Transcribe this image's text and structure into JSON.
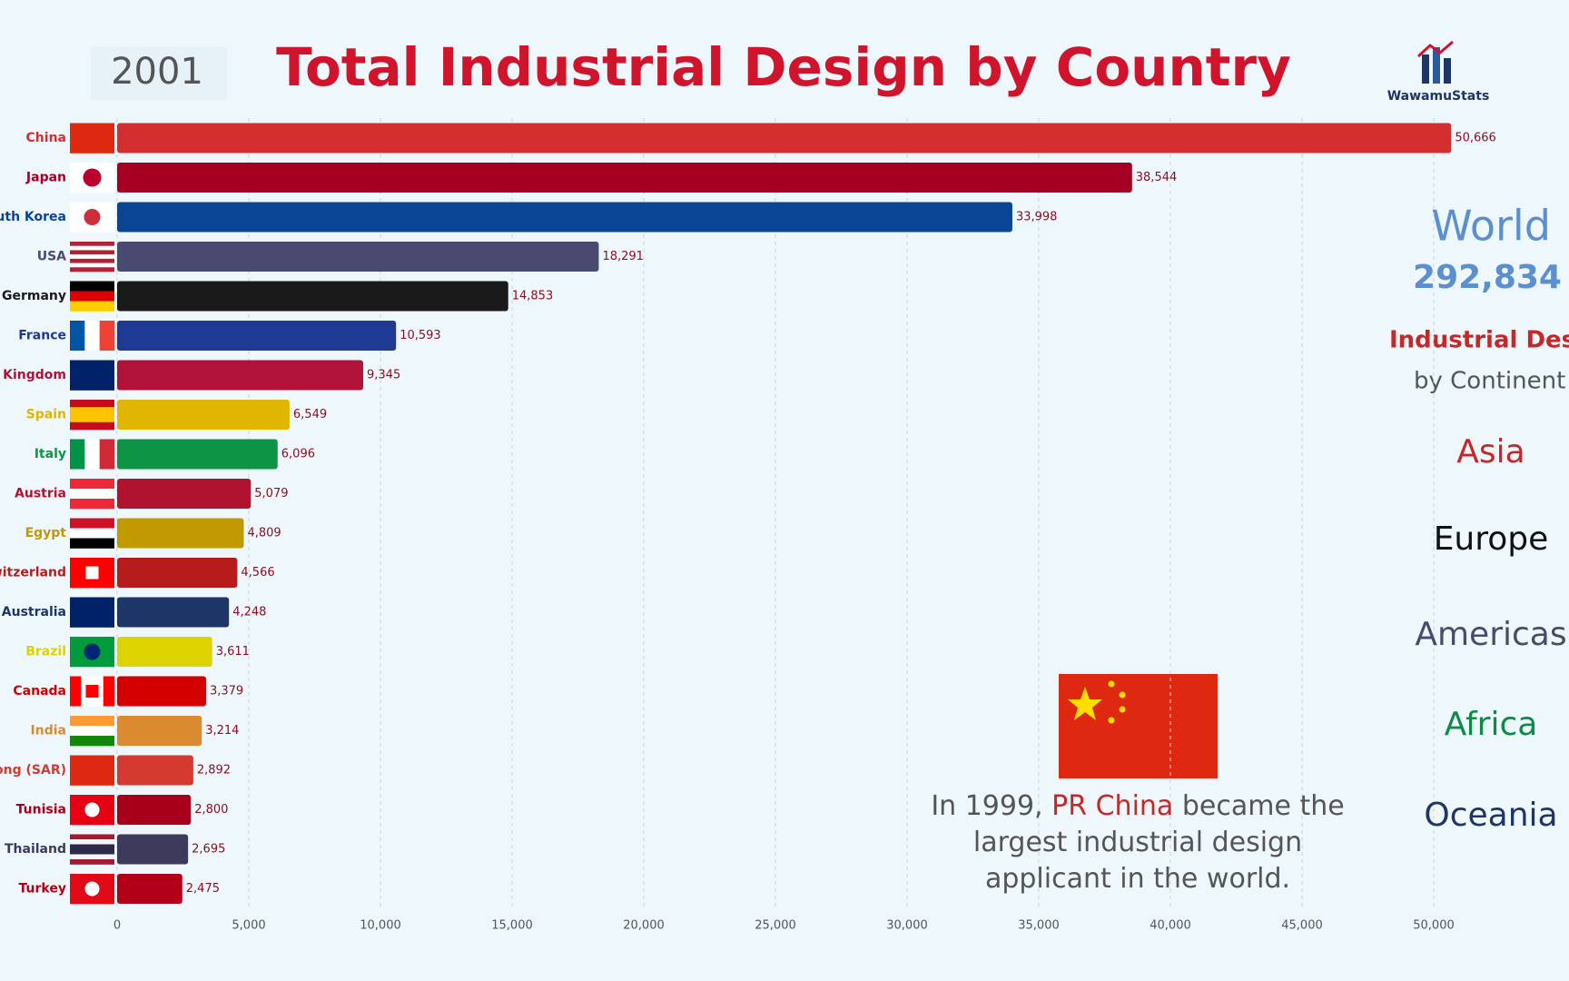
{
  "chart_data": {
    "type": "bar",
    "orientation": "horizontal",
    "title": "Total Industrial Design by Country",
    "year": "2001",
    "brand": "WawamuStats",
    "categories": [
      "China",
      "Japan",
      "South Korea",
      "USA",
      "Germany",
      "France",
      "United Kingdom",
      "Spain",
      "Italy",
      "Austria",
      "Egypt",
      "Switzerland",
      "Australia",
      "Brazil",
      "Canada",
      "India",
      "Hong Kong (SAR)",
      "Tunisia",
      "Thailand",
      "Turkey"
    ],
    "values": [
      50666,
      38544,
      33998,
      18291,
      14853,
      10593,
      9345,
      6549,
      6096,
      5079,
      4809,
      4566,
      4248,
      3611,
      3379,
      3214,
      2892,
      2800,
      2695,
      2475
    ],
    "value_labels": [
      "50,666",
      "38,544",
      "33,998",
      "18,291",
      "14,853",
      "10,593",
      "9,345",
      "6,549",
      "6,096",
      "5,079",
      "4,809",
      "4,566",
      "4,248",
      "3,611",
      "3,379",
      "3,214",
      "2,892",
      "2,800",
      "2,695",
      "2,475"
    ],
    "colors": [
      "#d32f2f",
      "#a50021",
      "#0a4595",
      "#4a4a70",
      "#1a1a1a",
      "#1f3a93",
      "#b0123a",
      "#e0b600",
      "#0e9445",
      "#b0132f",
      "#c09a00",
      "#b71c1c",
      "#1e3568",
      "#dcd300",
      "#d40000",
      "#dc8a30",
      "#d43a2f",
      "#a8001a",
      "#3d3a5c",
      "#b20018"
    ],
    "xlim": [
      0,
      55000
    ],
    "xticks": [
      0,
      {
        "value": 5000,
        "label": "5,000"
      },
      {
        "value": 10000,
        "label": "10,000"
      },
      {
        "value": 15000,
        "label": "15,000"
      },
      {
        "value": 20000,
        "label": "20,000"
      },
      {
        "value": 25000,
        "label": "25,000"
      },
      {
        "value": 30000,
        "label": "30,000"
      },
      {
        "value": 35000,
        "label": "35,000"
      },
      {
        "value": 40000,
        "label": "40,000"
      },
      {
        "value": 45000,
        "label": "45,000"
      },
      {
        "value": 50000,
        "label": "50,000"
      }
    ],
    "grid": true,
    "world_label": "World",
    "world_total": "292,834",
    "continent_title": "Industrial Design",
    "continent_subtitle": "by Continent",
    "continents": [
      {
        "name": "Asia",
        "color": "#c62828"
      },
      {
        "name": "Europe",
        "color": "#111111"
      },
      {
        "name": "Americas",
        "color": "#4a4a6a"
      },
      {
        "name": "Africa",
        "color": "#0e8a45"
      },
      {
        "name": "Oceania",
        "color": "#1e3568"
      }
    ],
    "annotation": {
      "before": "In 1999, ",
      "highlight": "PR China",
      "after": " became the largest industrial design applicant in the world."
    }
  }
}
